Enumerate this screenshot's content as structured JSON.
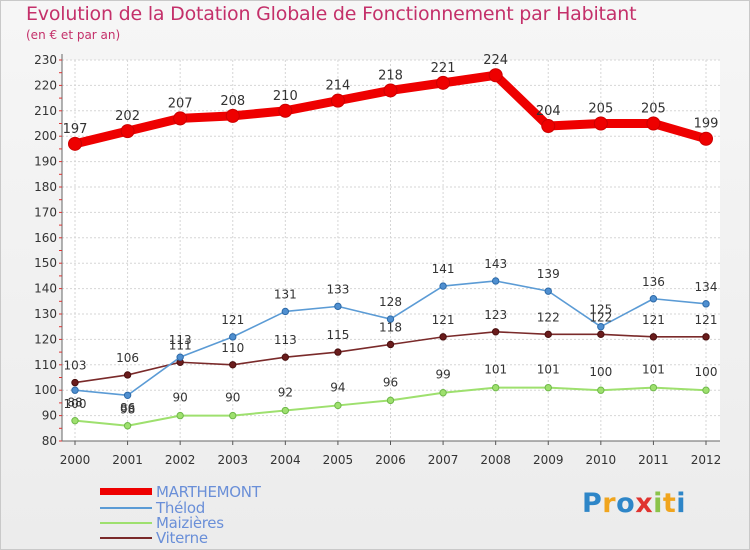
{
  "title": "Evolution de la Dotation Globale de Fonctionnement par Habitant",
  "subtitle": "(en € et par an)",
  "logo": {
    "text": "Proxiti",
    "colors": [
      "#2e86c8",
      "#f0a51e",
      "#2e86c8",
      "#e0332f",
      "#8bc34a",
      "#f0a51e",
      "#2e86c8"
    ]
  },
  "chart_data": {
    "type": "line",
    "title": "Evolution de la Dotation Globale de Fonctionnement par Habitant",
    "subtitle": "(en € et par an)",
    "xlabel": "",
    "ylabel": "",
    "x": [
      "2000",
      "2001",
      "2002",
      "2003",
      "2004",
      "2005",
      "2006",
      "2007",
      "2008",
      "2009",
      "2010",
      "2011",
      "2012"
    ],
    "ylim": [
      80,
      230
    ],
    "yticks": [
      "80",
      "90",
      "100",
      "110",
      "120",
      "130",
      "140",
      "150",
      "160",
      "170",
      "180",
      "190",
      "200",
      "210",
      "220",
      "230"
    ],
    "grid": true,
    "legend_position": "bottom-left",
    "series": [
      {
        "name": "MARTHEMONT",
        "color": "#ee0000",
        "values": [
          197,
          202,
          207,
          208,
          210,
          214,
          218,
          221,
          224,
          204,
          205,
          205,
          199
        ]
      },
      {
        "name": "Thélod",
        "color": "#5b9bd5",
        "values": [
          100,
          98,
          113,
          121,
          131,
          133,
          128,
          141,
          143,
          139,
          125,
          136,
          134
        ]
      },
      {
        "name": "Maizières",
        "color": "#9ee06e",
        "values": [
          88,
          86,
          90,
          90,
          92,
          94,
          96,
          99,
          101,
          101,
          100,
          101,
          100
        ]
      },
      {
        "name": "Viterne",
        "color": "#7a2a2a",
        "values": [
          103,
          106,
          111,
          110,
          113,
          115,
          118,
          121,
          123,
          122,
          122,
          121,
          121
        ]
      }
    ]
  }
}
